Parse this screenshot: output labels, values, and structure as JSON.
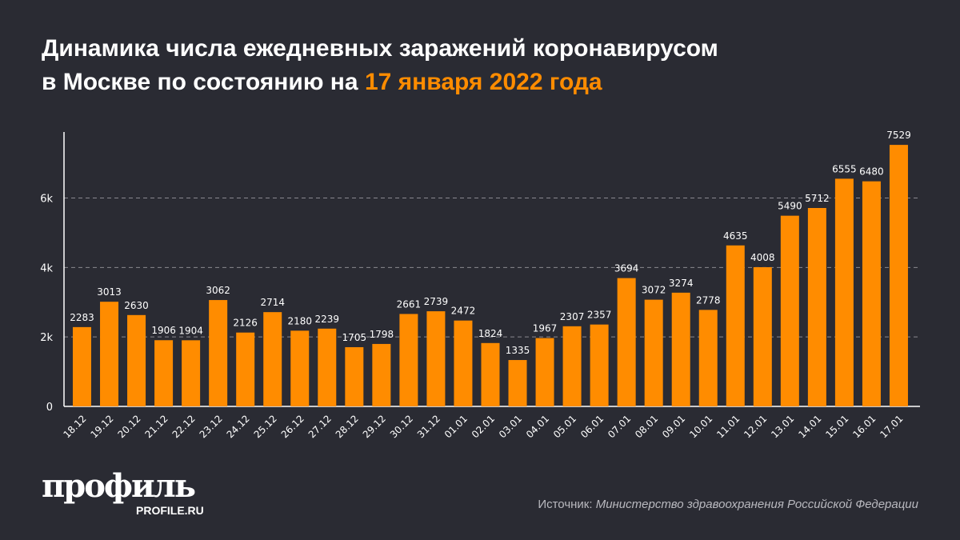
{
  "title_line1": "Динамика числа ежедневных заражений коронавирусом",
  "title_line2_prefix": "в Москве по состоянию на ",
  "title_line2_date": "17 января 2022 года",
  "colors": {
    "bar": "#ff8c00",
    "background": "#2a2b33",
    "accent": "#ff8c00"
  },
  "chart_data": {
    "type": "bar",
    "categories": [
      "18.12",
      "19.12",
      "20.12",
      "21.12",
      "22.12",
      "23.12",
      "24.12",
      "25.12",
      "26.12",
      "27.12",
      "28.12",
      "29.12",
      "30.12",
      "31.12",
      "01.01",
      "02.01",
      "03.01",
      "04.01",
      "05.01",
      "06.01",
      "07.01",
      "08.01",
      "09.01",
      "10.01",
      "11.01",
      "12.01",
      "13.01",
      "14.01",
      "15.01",
      "16.01",
      "17.01"
    ],
    "values": [
      2283,
      3013,
      2630,
      1906,
      1904,
      3062,
      2126,
      2714,
      2180,
      2239,
      1705,
      1798,
      2661,
      2739,
      2472,
      1824,
      1335,
      1967,
      2307,
      2357,
      3694,
      3072,
      3274,
      2778,
      4635,
      4008,
      5490,
      5712,
      6555,
      6480,
      7529
    ],
    "yticks": [
      0,
      2000,
      4000,
      6000
    ],
    "ytick_labels": [
      "0",
      "2k",
      "4k",
      "6k"
    ],
    "ylim": [
      0,
      7900
    ],
    "grid": true,
    "data_labels": true
  },
  "logo": {
    "text": "профиль",
    "sub": "PROFILE.RU"
  },
  "source": {
    "label": "Источник: ",
    "value": "Министерство здравоохранения Российской Федерации"
  }
}
